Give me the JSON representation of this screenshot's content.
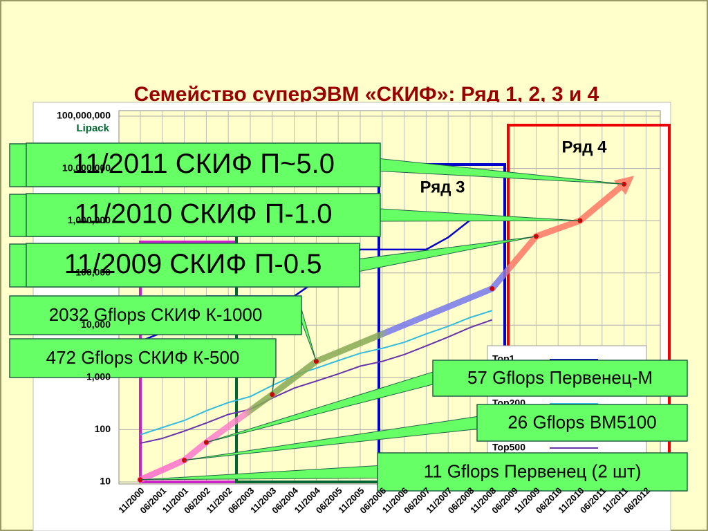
{
  "chart_data": {
    "type": "line",
    "title": "Семейство суперЭВМ «СКИФ»: Ряд 1, 2, 3 и 4",
    "y_label": "Lipack",
    "log_scale": true,
    "grid": true,
    "ylim": [
      10,
      100000000
    ],
    "yticks": [
      10,
      100,
      {
        "value": 1000,
        "label": "1,000"
      },
      {
        "value": 10000,
        "label": "10,000"
      },
      {
        "value": 100000,
        "label": "100,000"
      },
      {
        "value": 1000000,
        "label": "1,000,000"
      },
      {
        "value": 10000000,
        "label": "10,000,000"
      },
      {
        "value": 100000000,
        "label": "100,000,000"
      }
    ],
    "categories": [
      "11/2000",
      "06/2001",
      "11/2001",
      "06/2002",
      "11/2002",
      "06/2003",
      "11/2003",
      "06/2004",
      "11/2004",
      "06/2005",
      "11/2005",
      "06/2006",
      "11/2006",
      "06/2007",
      "11/2007",
      "06/2008",
      "11/2008",
      "06/2009",
      "11/2009",
      "06/2010",
      "11/2010",
      "06/2011",
      "11/2011",
      "06/2012"
    ],
    "series": [
      {
        "name": "Top1",
        "color": "#0000cc",
        "values": [
          4938,
          7226,
          7226,
          35860,
          35860,
          35860,
          35860,
          35860,
          70720,
          136800,
          280600,
          280600,
          280600,
          280600,
          478200,
          1026000,
          null,
          null,
          null,
          null,
          null,
          null,
          null,
          null
        ]
      },
      {
        "name": "Top200",
        "color": "#33bbdd",
        "values": [
          80,
          110,
          150,
          230,
          330,
          430,
          700,
          1100,
          1500,
          2100,
          2900,
          3600,
          4700,
          6800,
          9500,
          14000,
          19000,
          null,
          null,
          null,
          null,
          null,
          null,
          null
        ]
      },
      {
        "name": "Top500",
        "color": "#6633aa",
        "values": [
          55,
          68,
          94,
          134,
          196,
          245,
          403,
          624,
          851,
          1166,
          1646,
          2026,
          2737,
          4005,
          5929,
          9000,
          12640,
          null,
          null,
          null,
          null,
          null,
          null,
          null
        ]
      },
      {
        "color": "#ff7766",
        "values": [
          11,
          null,
          26,
          57,
          null,
          null,
          472,
          null,
          2032,
          null,
          null,
          null,
          null,
          null,
          null,
          null,
          50000,
          null,
          500000,
          null,
          1000000,
          null,
          5000000,
          null
        ]
      }
    ],
    "regions": [
      "Ряд 3",
      "Ряд 4"
    ],
    "annotations": [
      "11/2011 СКИФ П~5.0",
      "11/2010 СКИФ П-1.0",
      "11/2009 СКИФ П-0.5",
      "2032 Gflops СКИФ К-1000",
      "472 Gflops СКИФ К-500",
      "57 Gflops Первенец-М",
      "26 Gflops ВМ5100",
      "11 Gflops Первенец (2 шт)"
    ]
  }
}
